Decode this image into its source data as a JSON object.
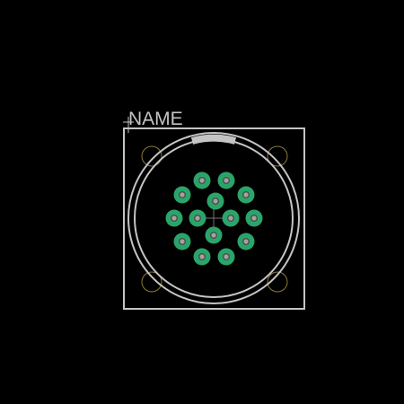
{
  "footprint": {
    "name_label": "NAME",
    "pin_count": 19
  },
  "colors": {
    "background": "#000000",
    "silkscreen": "#c4c4c4",
    "pad": "#2aa56a",
    "drill": "#a3a3a3",
    "drill_ring": "#4d4d4d",
    "mount_hole": "#8a7a3a"
  },
  "icons": {
    "origin_marker": "crosshair-icon",
    "center_marker": "crosshair-icon"
  }
}
